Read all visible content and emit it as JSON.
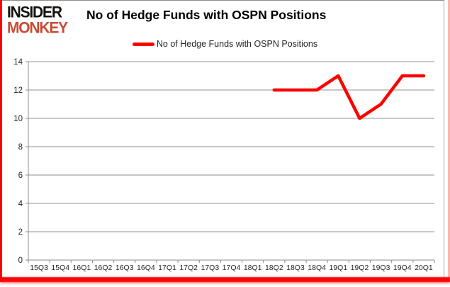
{
  "brand": {
    "line1": "INSIDER",
    "line2": "MONKEY",
    "accent": "#c94b35"
  },
  "header": {
    "title": "No of Hedge Funds with OSPN Positions"
  },
  "legend": {
    "label": "No of Hedge Funds with OSPN Positions",
    "swatch_color": "#FF0000"
  },
  "chart_data": {
    "type": "line",
    "title": "No of Hedge Funds with OSPN Positions",
    "categories": [
      "15Q3",
      "15Q4",
      "16Q1",
      "16Q2",
      "16Q3",
      "16Q4",
      "17Q1",
      "17Q2",
      "17Q3",
      "17Q4",
      "18Q1",
      "18Q2",
      "18Q3",
      "18Q4",
      "19Q1",
      "19Q2",
      "19Q3",
      "19Q4",
      "20Q1"
    ],
    "series": [
      {
        "name": "No of Hedge Funds with OSPN Positions",
        "color": "#FF0000",
        "values": [
          null,
          null,
          null,
          null,
          null,
          null,
          null,
          null,
          null,
          null,
          null,
          12,
          12,
          12,
          13,
          10,
          11,
          13,
          13
        ]
      }
    ],
    "xlabel": "",
    "ylabel": "",
    "ylim": [
      0,
      14
    ],
    "ytick": 2,
    "grid": true,
    "legend_position": "top",
    "colors": {
      "gridline": "#909090",
      "axis": "#8c8c8c",
      "tick_label": "#262626"
    }
  }
}
